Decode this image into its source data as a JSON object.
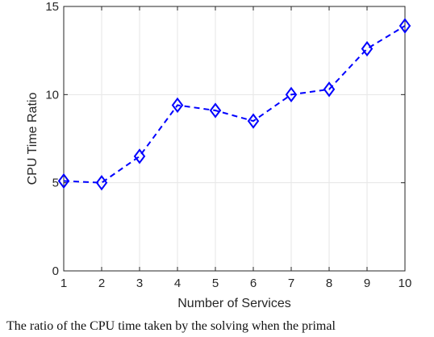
{
  "chart_data": {
    "type": "line",
    "title": "",
    "xlabel": "Number of Services",
    "ylabel": "CPU Time Ratio",
    "x": [
      1,
      2,
      3,
      4,
      5,
      6,
      7,
      8,
      9,
      10
    ],
    "series": [
      {
        "values": [
          5.1,
          5.0,
          6.5,
          9.4,
          9.1,
          8.5,
          10.0,
          10.3,
          12.6,
          13.9
        ]
      }
    ],
    "xlim": [
      1,
      10
    ],
    "ylim": [
      0,
      15
    ],
    "xticks": [
      "1",
      "2",
      "3",
      "4",
      "5",
      "6",
      "7",
      "8",
      "9",
      "10"
    ],
    "yticks": [
      "0",
      "5",
      "10",
      "15"
    ],
    "grid": true,
    "line_style": "dashed",
    "marker": "diamond",
    "line_color": "#0000ff"
  },
  "caption": "The ratio of the CPU time taken by the solving when the primal"
}
